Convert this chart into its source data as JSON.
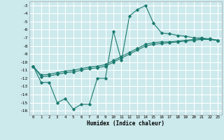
{
  "title": "",
  "xlabel": "Humidex (Indice chaleur)",
  "ylabel": "",
  "background_color": "#cce9ec",
  "line_color": "#1a7a6e",
  "grid_color": "#ffffff",
  "xlim": [
    -0.5,
    23.5
  ],
  "ylim": [
    -16.5,
    -2.5
  ],
  "xticks": [
    0,
    1,
    2,
    3,
    4,
    5,
    6,
    7,
    8,
    9,
    10,
    11,
    12,
    13,
    14,
    15,
    16,
    17,
    18,
    19,
    20,
    21,
    22,
    23
  ],
  "yticks": [
    -3,
    -4,
    -5,
    -6,
    -7,
    -8,
    -9,
    -10,
    -11,
    -12,
    -13,
    -14,
    -15,
    -16
  ],
  "series": [
    {
      "x": [
        0,
        1,
        2,
        3,
        4,
        5,
        6,
        7,
        8,
        9,
        10,
        11,
        12,
        13,
        14,
        15,
        16,
        17,
        18,
        19,
        20,
        21,
        22,
        23
      ],
      "y": [
        -10.5,
        -12.5,
        -12.5,
        -15.0,
        -14.5,
        -15.8,
        -15.2,
        -15.2,
        -12.0,
        -12.0,
        -6.2,
        -9.8,
        -4.3,
        -3.5,
        -3.0,
        -5.2,
        -6.4,
        -6.5,
        -6.7,
        -6.8,
        -7.0,
        -7.0,
        -7.2,
        -7.3
      ]
    },
    {
      "x": [
        0,
        1,
        2,
        3,
        4,
        5,
        6,
        7,
        8,
        9,
        10,
        11,
        12,
        13,
        14,
        15,
        16,
        17,
        18,
        19,
        20,
        21,
        22,
        23
      ],
      "y": [
        -10.5,
        -11.8,
        -11.7,
        -11.5,
        -11.3,
        -11.2,
        -11.0,
        -10.8,
        -10.7,
        -10.5,
        -10.0,
        -9.5,
        -9.0,
        -8.5,
        -8.0,
        -7.8,
        -7.7,
        -7.6,
        -7.5,
        -7.4,
        -7.3,
        -7.2,
        -7.2,
        -7.3
      ]
    },
    {
      "x": [
        0,
        1,
        2,
        3,
        4,
        5,
        6,
        7,
        8,
        9,
        10,
        11,
        12,
        13,
        14,
        15,
        16,
        17,
        18,
        19,
        20,
        21,
        22,
        23
      ],
      "y": [
        -10.5,
        -11.6,
        -11.5,
        -11.3,
        -11.1,
        -11.0,
        -10.8,
        -10.6,
        -10.5,
        -10.3,
        -9.8,
        -9.3,
        -8.8,
        -8.3,
        -7.8,
        -7.6,
        -7.5,
        -7.5,
        -7.4,
        -7.3,
        -7.2,
        -7.1,
        -7.1,
        -7.3
      ]
    }
  ]
}
